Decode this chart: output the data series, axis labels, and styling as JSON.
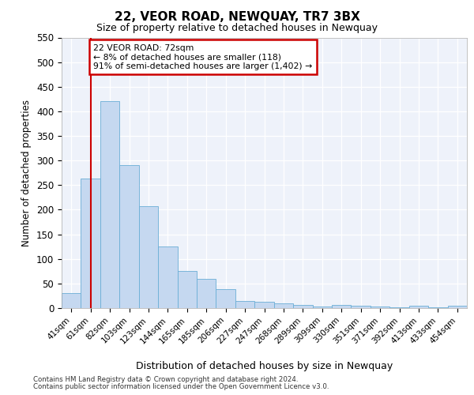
{
  "title1": "22, VEOR ROAD, NEWQUAY, TR7 3BX",
  "title2": "Size of property relative to detached houses in Newquay",
  "xlabel": "Distribution of detached houses by size in Newquay",
  "ylabel": "Number of detached properties",
  "bin_labels": [
    "41sqm",
    "61sqm",
    "82sqm",
    "103sqm",
    "123sqm",
    "144sqm",
    "165sqm",
    "185sqm",
    "206sqm",
    "227sqm",
    "247sqm",
    "268sqm",
    "289sqm",
    "309sqm",
    "330sqm",
    "351sqm",
    "371sqm",
    "392sqm",
    "413sqm",
    "433sqm",
    "454sqm"
  ],
  "bar_values": [
    30,
    263,
    420,
    290,
    207,
    126,
    76,
    59,
    38,
    14,
    13,
    10,
    6,
    4,
    6,
    5,
    3,
    2,
    5,
    2,
    5
  ],
  "bar_color": "#c5d8f0",
  "bar_edge_color": "#6aaed6",
  "background_color": "#eef2fa",
  "grid_color": "#ffffff",
  "annotation_text": "22 VEOR ROAD: 72sqm\n← 8% of detached houses are smaller (118)\n91% of semi-detached houses are larger (1,402) →",
  "annotation_box_color": "#ffffff",
  "annotation_box_edge": "#cc0000",
  "vline_x": 1.0,
  "vline_color": "#cc0000",
  "ylim_max": 550,
  "yticks": [
    0,
    50,
    100,
    150,
    200,
    250,
    300,
    350,
    400,
    450,
    500,
    550
  ],
  "footer1": "Contains HM Land Registry data © Crown copyright and database right 2024.",
  "footer2": "Contains public sector information licensed under the Open Government Licence v3.0."
}
